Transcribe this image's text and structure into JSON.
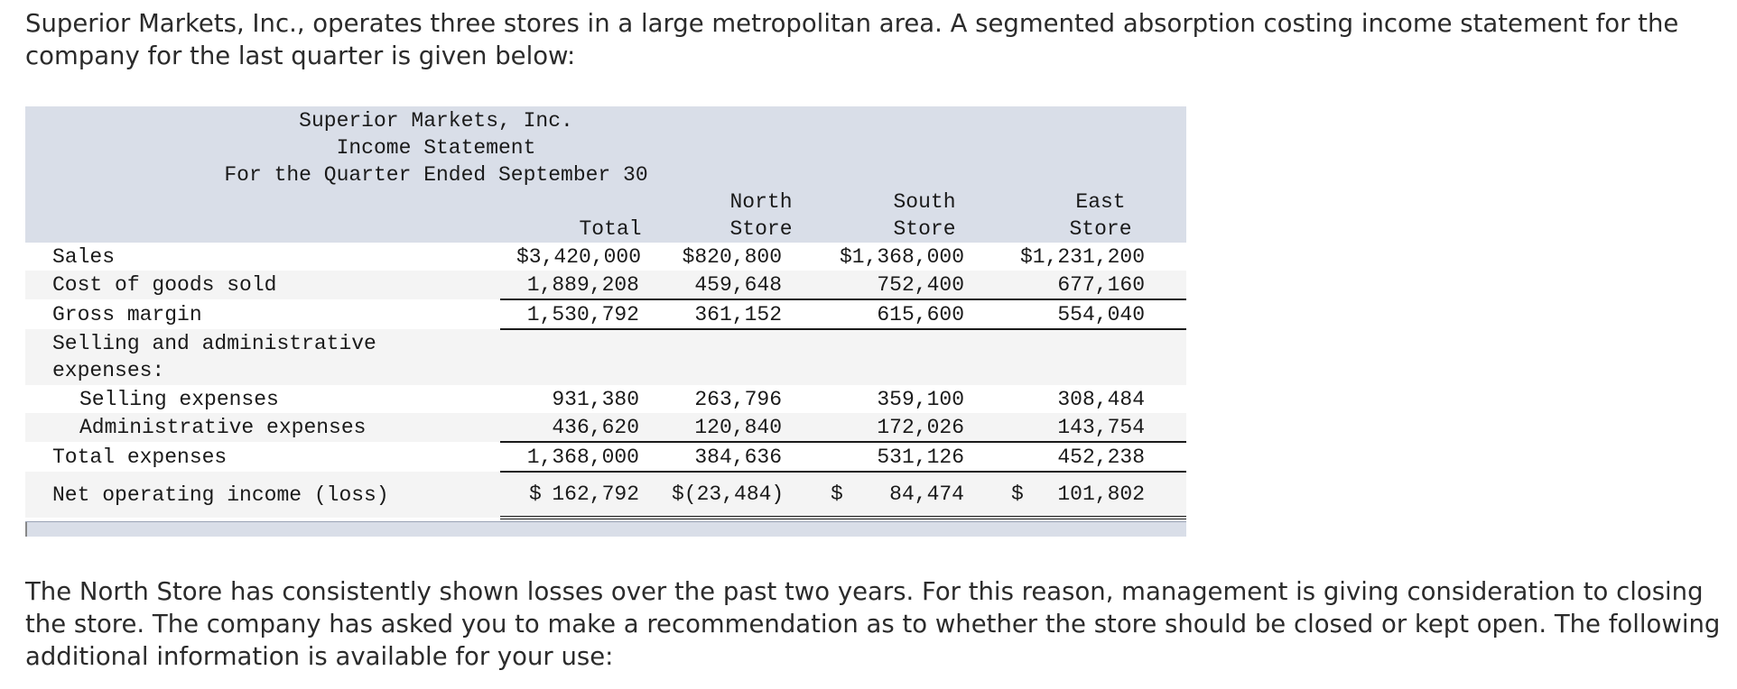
{
  "intro_text": "Superior Markets, Inc., operates three stores in a large metropolitan area. A segmented absorption costing income statement for the company for the last quarter is given below:",
  "statement": {
    "company": "Superior Markets, Inc.",
    "title": "Income Statement",
    "period": "For the Quarter Ended September 30",
    "columns": {
      "total": "Total",
      "north_line1": "North",
      "north_line2": "Store",
      "south_line1": "South",
      "south_line2": "Store",
      "east_line1": "East",
      "east_line2": "Store"
    },
    "rows": {
      "sales": {
        "label": "Sales",
        "total": "$3,420,000",
        "north": "$820,800",
        "south": "$1,368,000",
        "east": "$1,231,200"
      },
      "cogs": {
        "label": "Cost of goods sold",
        "total": "1,889,208",
        "north": "459,648",
        "south": "752,400",
        "east": "677,160"
      },
      "gross_margin": {
        "label": "Gross margin",
        "total": "1,530,792",
        "north": "361,152",
        "south": "615,600",
        "east": "554,040"
      },
      "sga_heading": {
        "label": "Selling and administrative expenses:"
      },
      "selling": {
        "label": "Selling expenses",
        "total": "931,380",
        "north": "263,796",
        "south": "359,100",
        "east": "308,484"
      },
      "admin": {
        "label": "Administrative expenses",
        "total": "436,620",
        "north": "120,840",
        "south": "172,026",
        "east": "143,754"
      },
      "total_expenses": {
        "label": "Total expenses",
        "total": "1,368,000",
        "north": "384,636",
        "south": "531,126",
        "east": "452,238"
      },
      "net": {
        "label": "Net operating income (loss)",
        "dollar": "$",
        "total": "162,792",
        "north": "$(23,484)",
        "south": "84,474",
        "east": "101,802"
      }
    }
  },
  "followup_text": "The North Store has consistently shown losses over the past two years. For this reason, management is giving consideration to closing the store. The company has asked you to make a recommendation as to whether the store should be closed or kept open. The following additional information is available for your use:"
}
